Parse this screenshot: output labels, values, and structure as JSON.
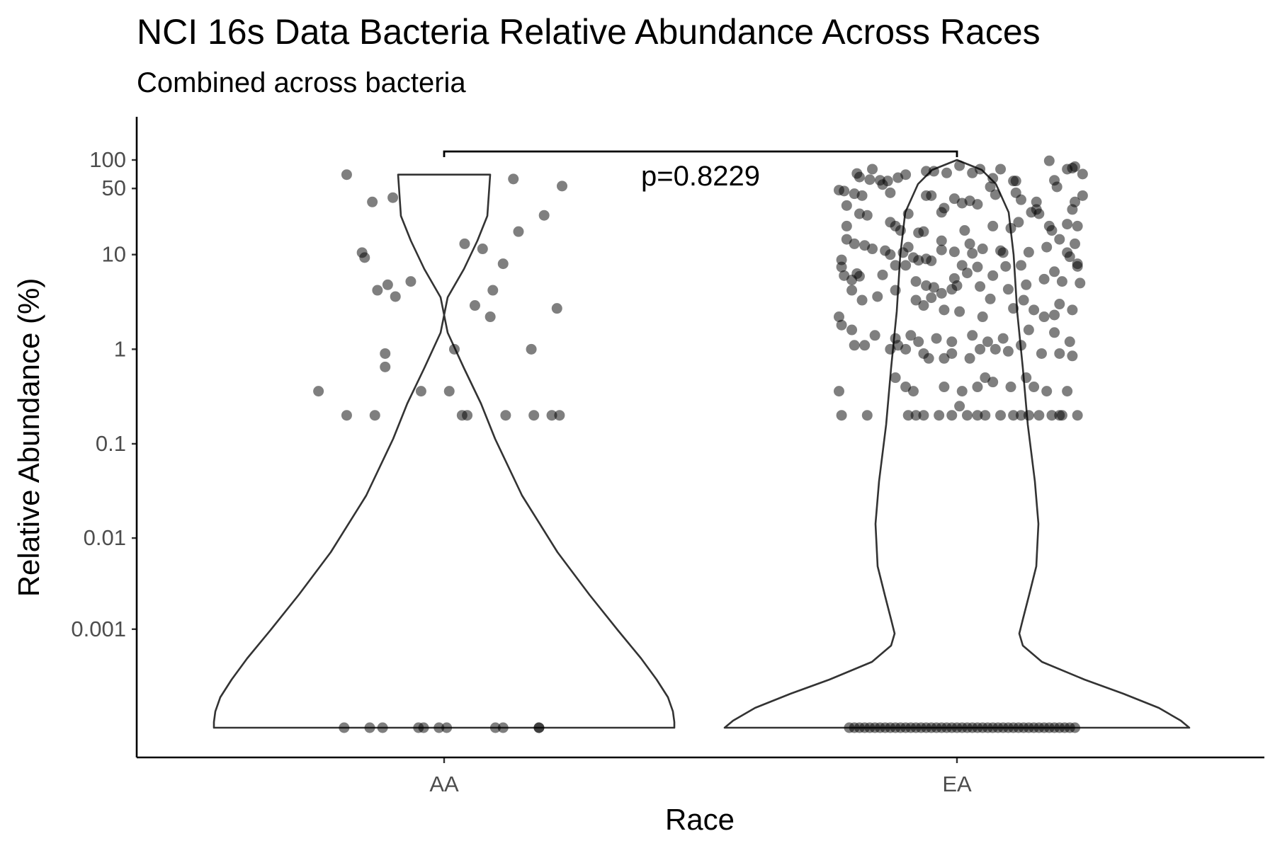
{
  "chart_data": {
    "type": "violin",
    "title": "NCI 16s Data Bacteria Relative Abundance Across Races",
    "subtitle": "Combined across bacteria",
    "xlabel": "Race",
    "ylabel": "Relative Abundance (%)",
    "categories": [
      "AA",
      "EA"
    ],
    "y_scale": "pseudo-log",
    "y_ticks": [
      0.001,
      0.01,
      0.1,
      1,
      10,
      50,
      100
    ],
    "y_tick_labels": [
      "0.001",
      "0.01",
      "0.1",
      "1",
      "10",
      "50",
      "100"
    ],
    "grid": false,
    "legend": "none",
    "annotation": {
      "text": "p=0.8229",
      "from": "AA",
      "to": "EA"
    },
    "colors": {
      "points": "#000000",
      "violin_outline": "#333333",
      "violin_fill": "#ffffff"
    },
    "series": [
      {
        "group": "AA",
        "violin_max": 70,
        "points": [
          [
            -0.19,
            70
          ],
          [
            -0.14,
            36
          ],
          [
            -0.1,
            40
          ],
          [
            -0.16,
            10.5
          ],
          [
            -0.155,
            9.3
          ],
          [
            -0.13,
            4.2
          ],
          [
            -0.11,
            4.8
          ],
          [
            -0.095,
            3.6
          ],
          [
            -0.065,
            5.2
          ],
          [
            0.04,
            13
          ],
          [
            0.075,
            11.5
          ],
          [
            0.115,
            8
          ],
          [
            0.135,
            63
          ],
          [
            0.145,
            17.5
          ],
          [
            0.195,
            26
          ],
          [
            0.23,
            53
          ],
          [
            0.095,
            4.2
          ],
          [
            0.09,
            2.2
          ],
          [
            0.06,
            2.9
          ],
          [
            0.22,
            2.7
          ],
          [
            -0.115,
            0.9
          ],
          [
            -0.115,
            0.65
          ],
          [
            -0.045,
            0.36
          ],
          [
            0.01,
            0.36
          ],
          [
            0.02,
            1.0
          ],
          [
            0.17,
            1.0
          ],
          [
            -0.245,
            0.36
          ],
          [
            -0.19,
            0.2
          ],
          [
            -0.135,
            0.2
          ],
          [
            0.035,
            0.2
          ],
          [
            0.045,
            0.2
          ],
          [
            0.12,
            0.2
          ],
          [
            0.175,
            0.2
          ],
          [
            0.21,
            0.2
          ],
          [
            0.225,
            0.2
          ],
          [
            -0.195,
            0
          ],
          [
            -0.145,
            0
          ],
          [
            -0.12,
            0
          ],
          [
            -0.05,
            0
          ],
          [
            -0.04,
            0
          ],
          [
            -0.01,
            0
          ],
          [
            0.005,
            0
          ],
          [
            0.1,
            0
          ],
          [
            0.115,
            0
          ],
          [
            0.185,
            0
          ],
          [
            0.185,
            0
          ]
        ]
      },
      {
        "group": "EA",
        "violin_max": 100,
        "points": [
          [
            -0.165,
            80
          ],
          [
            -0.195,
            72
          ],
          [
            -0.19,
            66
          ],
          [
            -0.17,
            62
          ],
          [
            -0.15,
            61
          ],
          [
            -0.135,
            60
          ],
          [
            -0.115,
            65
          ],
          [
            -0.1,
            70
          ],
          [
            -0.06,
            76
          ],
          [
            -0.045,
            76
          ],
          [
            0.005,
            87
          ],
          [
            -0.02,
            73
          ],
          [
            0.03,
            73
          ],
          [
            0.045,
            80
          ],
          [
            0.085,
            80
          ],
          [
            0.07,
            64
          ],
          [
            0.11,
            60
          ],
          [
            0.115,
            60
          ],
          [
            0.18,
            98
          ],
          [
            0.19,
            61
          ],
          [
            0.215,
            80
          ],
          [
            0.225,
            82
          ],
          [
            0.23,
            85
          ],
          [
            0.245,
            71
          ],
          [
            -0.23,
            48
          ],
          [
            -0.22,
            47
          ],
          [
            -0.2,
            44
          ],
          [
            -0.185,
            42
          ],
          [
            -0.145,
            55
          ],
          [
            -0.13,
            45
          ],
          [
            -0.06,
            42
          ],
          [
            -0.05,
            42
          ],
          [
            -0.025,
            31
          ],
          [
            -0.005,
            39
          ],
          [
            0.01,
            35
          ],
          [
            0.025,
            37
          ],
          [
            -0.095,
            27
          ],
          [
            -0.03,
            28
          ],
          [
            0.04,
            34
          ],
          [
            0.065,
            52
          ],
          [
            0.075,
            43
          ],
          [
            0.115,
            45
          ],
          [
            0.155,
            36
          ],
          [
            0.155,
            30
          ],
          [
            0.195,
            52
          ],
          [
            0.225,
            30
          ],
          [
            0.245,
            42
          ],
          [
            0.23,
            36
          ],
          [
            0.125,
            38
          ],
          [
            0.145,
            28
          ],
          [
            0.16,
            27
          ],
          [
            -0.215,
            33
          ],
          [
            -0.215,
            20
          ],
          [
            -0.19,
            27
          ],
          [
            -0.175,
            26
          ],
          [
            -0.12,
            20
          ],
          [
            -0.13,
            22
          ],
          [
            -0.11,
            18
          ],
          [
            -0.075,
            17
          ],
          [
            -0.065,
            17.5
          ],
          [
            -0.03,
            14
          ],
          [
            0.015,
            18
          ],
          [
            0.025,
            13
          ],
          [
            0.07,
            20
          ],
          [
            0.12,
            22
          ],
          [
            0.105,
            19
          ],
          [
            0.18,
            20
          ],
          [
            0.185,
            18
          ],
          [
            0.215,
            21
          ],
          [
            0.235,
            20
          ],
          [
            -0.215,
            14.5
          ],
          [
            -0.2,
            13
          ],
          [
            -0.18,
            12.5
          ],
          [
            -0.165,
            11.5
          ],
          [
            -0.14,
            11
          ],
          [
            -0.13,
            10
          ],
          [
            -0.105,
            10.5
          ],
          [
            -0.095,
            12
          ],
          [
            -0.085,
            9.3
          ],
          [
            -0.075,
            8.7
          ],
          [
            -0.06,
            9
          ],
          [
            -0.05,
            8.6
          ],
          [
            -0.03,
            11.2
          ],
          [
            -0.005,
            10.7
          ],
          [
            0.01,
            7.7
          ],
          [
            0.03,
            10.3
          ],
          [
            0.05,
            11.5
          ],
          [
            0.085,
            11
          ],
          [
            0.09,
            10.5
          ],
          [
            0.125,
            7.7
          ],
          [
            0.14,
            10.6
          ],
          [
            0.175,
            12
          ],
          [
            0.2,
            14.5
          ],
          [
            0.215,
            10.5
          ],
          [
            0.22,
            9.5
          ],
          [
            0.23,
            13
          ],
          [
            0.235,
            8
          ],
          [
            -0.225,
            8.8
          ],
          [
            -0.225,
            7.4
          ],
          [
            -0.22,
            6
          ],
          [
            -0.205,
            5.4
          ],
          [
            -0.195,
            6.3
          ],
          [
            -0.19,
            5.9
          ],
          [
            -0.145,
            6.1
          ],
          [
            -0.12,
            7.7
          ],
          [
            -0.1,
            7.7
          ],
          [
            -0.08,
            5.2
          ],
          [
            -0.06,
            4.7
          ],
          [
            -0.045,
            4.5
          ],
          [
            -0.03,
            3.9
          ],
          [
            -0.01,
            4.3
          ],
          [
            -0.005,
            5.6
          ],
          [
            0.0,
            4.7
          ],
          [
            0.02,
            6.4
          ],
          [
            0.04,
            7.4
          ],
          [
            0.045,
            4.6
          ],
          [
            0.07,
            6.0
          ],
          [
            0.095,
            7.5
          ],
          [
            0.1,
            4.3
          ],
          [
            0.135,
            4.8
          ],
          [
            0.17,
            5.5
          ],
          [
            0.19,
            6.6
          ],
          [
            0.205,
            5.2
          ],
          [
            0.235,
            7.5
          ],
          [
            0.24,
            5.0
          ],
          [
            -0.205,
            4.2
          ],
          [
            -0.185,
            3.3
          ],
          [
            -0.155,
            3.6
          ],
          [
            -0.12,
            4.2
          ],
          [
            -0.08,
            3.3
          ],
          [
            -0.065,
            2.9
          ],
          [
            -0.05,
            3.5
          ],
          [
            -0.025,
            2.6
          ],
          [
            0.005,
            2.5
          ],
          [
            0.05,
            2.2
          ],
          [
            0.065,
            3.4
          ],
          [
            0.11,
            2.7
          ],
          [
            0.13,
            3.3
          ],
          [
            0.15,
            2.6
          ],
          [
            0.17,
            2.2
          ],
          [
            0.19,
            2.3
          ],
          [
            0.2,
            3.0
          ],
          [
            0.225,
            2.6
          ],
          [
            -0.23,
            2.2
          ],
          [
            -0.225,
            1.8
          ],
          [
            -0.205,
            1.6
          ],
          [
            -0.16,
            1.4
          ],
          [
            -0.12,
            1.3
          ],
          [
            -0.09,
            1.4
          ],
          [
            -0.075,
            1.2
          ],
          [
            -0.04,
            1.3
          ],
          [
            -0.01,
            1.2
          ],
          [
            0.03,
            1.4
          ],
          [
            0.06,
            1.2
          ],
          [
            0.09,
            1.3
          ],
          [
            0.14,
            1.6
          ],
          [
            0.19,
            1.5
          ],
          [
            0.22,
            1.2
          ],
          [
            -0.2,
            1.1
          ],
          [
            -0.18,
            1.1
          ],
          [
            -0.13,
            1.0
          ],
          [
            -0.115,
            1.1
          ],
          [
            -0.1,
            1.0
          ],
          [
            -0.065,
            0.9
          ],
          [
            -0.055,
            0.8
          ],
          [
            -0.025,
            0.8
          ],
          [
            -0.01,
            0.9
          ],
          [
            0.025,
            0.8
          ],
          [
            0.045,
            1.0
          ],
          [
            0.075,
            1.0
          ],
          [
            0.1,
            0.95
          ],
          [
            0.125,
            1.1
          ],
          [
            0.165,
            0.9
          ],
          [
            0.2,
            0.9
          ],
          [
            0.225,
            0.85
          ],
          [
            -0.12,
            0.5
          ],
          [
            -0.1,
            0.4
          ],
          [
            -0.085,
            0.36
          ],
          [
            -0.025,
            0.4
          ],
          [
            0.01,
            0.36
          ],
          [
            0.04,
            0.4
          ],
          [
            0.055,
            0.5
          ],
          [
            0.07,
            0.45
          ],
          [
            0.105,
            0.4
          ],
          [
            0.135,
            0.5
          ],
          [
            0.15,
            0.4
          ],
          [
            0.175,
            0.36
          ],
          [
            0.215,
            0.36
          ],
          [
            -0.23,
            0.36
          ],
          [
            -0.095,
            0.2
          ],
          [
            -0.08,
            0.2
          ],
          [
            -0.065,
            0.2
          ],
          [
            -0.035,
            0.2
          ],
          [
            -0.01,
            0.2
          ],
          [
            0.005,
            0.25
          ],
          [
            0.02,
            0.2
          ],
          [
            0.04,
            0.2
          ],
          [
            0.055,
            0.2
          ],
          [
            0.085,
            0.2
          ],
          [
            0.11,
            0.2
          ],
          [
            0.14,
            0.2
          ],
          [
            0.16,
            0.2
          ],
          [
            0.185,
            0.2
          ],
          [
            0.205,
            0.2
          ],
          [
            0.235,
            0.2
          ],
          [
            -0.225,
            0.2
          ],
          [
            -0.175,
            0.2
          ],
          [
            0.125,
            0.2
          ],
          [
            0.2,
            0.2
          ],
          [
            -0.21,
            0
          ],
          [
            -0.2,
            0
          ],
          [
            -0.19,
            0
          ],
          [
            -0.18,
            0
          ],
          [
            -0.17,
            0
          ],
          [
            -0.16,
            0
          ],
          [
            -0.15,
            0
          ],
          [
            -0.14,
            0
          ],
          [
            -0.13,
            0
          ],
          [
            -0.12,
            0
          ],
          [
            -0.11,
            0
          ],
          [
            -0.1,
            0
          ],
          [
            -0.09,
            0
          ],
          [
            -0.08,
            0
          ],
          [
            -0.07,
            0
          ],
          [
            -0.06,
            0
          ],
          [
            -0.05,
            0
          ],
          [
            -0.04,
            0
          ],
          [
            -0.03,
            0
          ],
          [
            -0.02,
            0
          ],
          [
            -0.01,
            0
          ],
          [
            0.0,
            0
          ],
          [
            0.01,
            0
          ],
          [
            0.02,
            0
          ],
          [
            0.03,
            0
          ],
          [
            0.04,
            0
          ],
          [
            0.05,
            0
          ],
          [
            0.06,
            0
          ],
          [
            0.07,
            0
          ],
          [
            0.08,
            0
          ],
          [
            0.09,
            0
          ],
          [
            0.1,
            0
          ],
          [
            0.11,
            0
          ],
          [
            0.12,
            0
          ],
          [
            0.13,
            0
          ],
          [
            0.14,
            0
          ],
          [
            0.15,
            0
          ],
          [
            0.16,
            0
          ],
          [
            0.17,
            0
          ],
          [
            0.18,
            0
          ],
          [
            0.19,
            0
          ],
          [
            0.2,
            0
          ],
          [
            0.21,
            0
          ],
          [
            0.22,
            0
          ],
          [
            0.23,
            0
          ]
        ]
      }
    ]
  }
}
